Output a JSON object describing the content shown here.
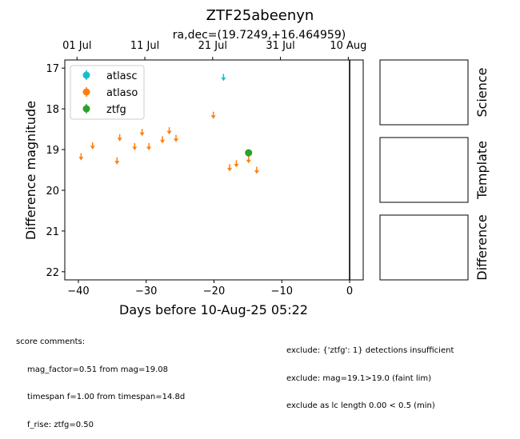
{
  "chart_data": {
    "type": "scatter",
    "title": "ZTF25abeenyn",
    "subtitle": "ra,dec=(19.7249,+16.464959)",
    "xlabel": "Days before 10-Aug-25 05:22",
    "ylabel": "Difference magnitude",
    "xlim": [
      -42,
      2
    ],
    "ylim": [
      22.2,
      16.8
    ],
    "y_inverted": true,
    "xticks": [
      -40,
      -30,
      -20,
      -10,
      0
    ],
    "yticks": [
      17,
      18,
      19,
      20,
      21,
      22
    ],
    "top_axis_ticks": [
      {
        "x": -40.2,
        "label": "01 Jul"
      },
      {
        "x": -30.2,
        "label": "11 Jul"
      },
      {
        "x": -20.2,
        "label": "21 Jul"
      },
      {
        "x": -10.2,
        "label": "31 Jul"
      },
      {
        "x": -0.2,
        "label": "10 Aug"
      }
    ],
    "vertical_line_x": 0,
    "grid": false,
    "legend_position": "top-left",
    "series": [
      {
        "name": "atlasc",
        "color": "#17becf",
        "marker": "upper-limit-arrow",
        "points": [
          {
            "x": -18.6,
            "y": 17.2
          }
        ]
      },
      {
        "name": "atlaso",
        "color": "#ff7f0e",
        "marker": "upper-limit-arrow",
        "points": [
          {
            "x": -39.6,
            "y": 19.15
          },
          {
            "x": -37.9,
            "y": 18.88
          },
          {
            "x": -34.3,
            "y": 19.25
          },
          {
            "x": -33.9,
            "y": 18.68
          },
          {
            "x": -31.7,
            "y": 18.9
          },
          {
            "x": -30.6,
            "y": 18.55
          },
          {
            "x": -29.6,
            "y": 18.9
          },
          {
            "x": -27.6,
            "y": 18.73
          },
          {
            "x": -26.6,
            "y": 18.51
          },
          {
            "x": -25.6,
            "y": 18.7
          },
          {
            "x": -20.1,
            "y": 18.13
          },
          {
            "x": -17.7,
            "y": 19.42
          },
          {
            "x": -16.7,
            "y": 19.32
          },
          {
            "x": -14.9,
            "y": 19.22
          },
          {
            "x": -13.7,
            "y": 19.48
          }
        ]
      },
      {
        "name": "ztfg",
        "color": "#2ca02c",
        "marker": "detection",
        "points": [
          {
            "x": -14.9,
            "y": 19.08
          }
        ]
      }
    ],
    "panels": [
      "Science",
      "Template",
      "Difference"
    ]
  },
  "notes": {
    "left_header": "score comments:",
    "left_lines": [
      "mag_factor=0.51 from mag=19.08",
      "timespan f=1.00 from timespan=14.8d",
      "f_rise: ztfg=0.50"
    ],
    "right_lines": [
      "exclude: {'ztfg': 1} detections insufficient",
      "exclude: mag=19.1>19.0 (faint lim)",
      "exclude as lc length 0.00 < 0.5 (min)"
    ]
  }
}
